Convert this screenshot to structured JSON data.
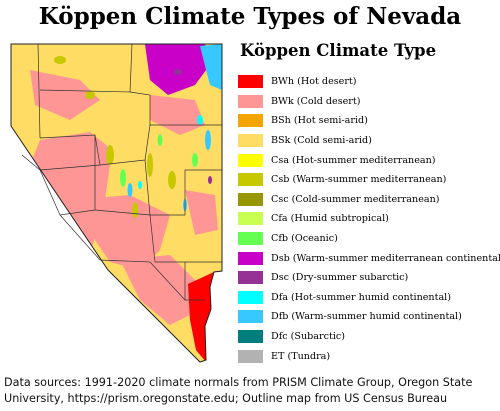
{
  "title": "Köppen Climate Types of Nevada",
  "legend": {
    "title": "Köppen Climate Type",
    "items": [
      {
        "code": "BWh",
        "label": "BWh (Hot desert)",
        "color": "#ff0000"
      },
      {
        "code": "BWk",
        "label": "BWk (Cold desert)",
        "color": "#ff9696"
      },
      {
        "code": "BSh",
        "label": "BSh (Hot semi-arid)",
        "color": "#f5a500"
      },
      {
        "code": "BSk",
        "label": "BSk (Cold semi-arid)",
        "color": "#ffdc64"
      },
      {
        "code": "Csa",
        "label": "Csa (Hot-summer mediterranean)",
        "color": "#ffff00"
      },
      {
        "code": "Csb",
        "label": "Csb (Warm-summer mediterranean)",
        "color": "#c8c800"
      },
      {
        "code": "Csc",
        "label": "Csc (Cold-summer mediterranean)",
        "color": "#969600"
      },
      {
        "code": "Cfa",
        "label": "Cfa (Humid subtropical)",
        "color": "#c8ff50"
      },
      {
        "code": "Cfb",
        "label": "Cfb (Oceanic)",
        "color": "#64ff50"
      },
      {
        "code": "Dsb",
        "label": "Dsb (Warm-summer mediterranean continental)",
        "color": "#c800c8"
      },
      {
        "code": "Dsc",
        "label": "Dsc (Dry-summer subarctic)",
        "color": "#963296"
      },
      {
        "code": "Dfa",
        "label": "Dfa (Hot-summer humid continental)",
        "color": "#00ffff"
      },
      {
        "code": "Dfb",
        "label": "Dfb (Warm-summer humid continental)",
        "color": "#37c8ff"
      },
      {
        "code": "Dfc",
        "label": "Dfc (Subarctic)",
        "color": "#007d7d"
      },
      {
        "code": "ET",
        "label": "ET (Tundra)",
        "color": "#b2b2b2"
      }
    ]
  },
  "source": "Data sources: 1991-2020 climate normals from PRISM Climate Group, Oregon State University, https://prism.oregonstate.edu; Outline map from US Census Bureau"
}
